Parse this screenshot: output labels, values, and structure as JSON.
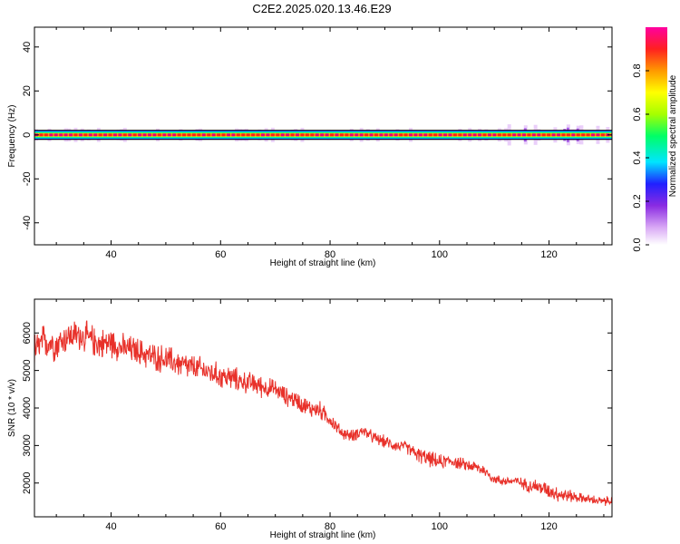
{
  "title": "C2E2.2025.020.13.46.E29",
  "chart_data": [
    {
      "type": "heatmap",
      "xlabel": "Height of straight line (km)",
      "ylabel": "Frequency (Hz)",
      "xlim": [
        26,
        131.5
      ],
      "ylim": [
        -50,
        49
      ],
      "x_ticks": [
        40,
        60,
        80,
        100,
        120
      ],
      "y_ticks": [
        -40,
        -20,
        0,
        20,
        40
      ],
      "x_tick_labels": [
        "40",
        "60",
        "80",
        "100",
        "120"
      ],
      "y_tick_labels": [
        "-40",
        "-20",
        "0",
        "20",
        "40"
      ],
      "signal_frequency": 0,
      "colorbar": {
        "label": "Normalized spectral amplitude",
        "range": [
          0,
          1
        ],
        "ticks": [
          0.0,
          0.2,
          0.4,
          0.6,
          0.8
        ],
        "tick_labels": [
          "0.0",
          "0.2",
          "0.4",
          "0.6",
          "0.8"
        ],
        "colormap": [
          "#ffffff",
          "#d9a8f5",
          "#8a2be2",
          "#2020ff",
          "#00e5ff",
          "#00ff66",
          "#a6ff00",
          "#ffff00",
          "#ff9900",
          "#ff2020",
          "#ff00a0"
        ]
      },
      "grid": false
    },
    {
      "type": "line",
      "xlabel": "Height of straight line (km)",
      "ylabel": "SNR (10 * v/v)",
      "xlim": [
        26,
        131.5
      ],
      "ylim": [
        1100,
        6900
      ],
      "x_ticks": [
        40,
        60,
        80,
        100,
        120
      ],
      "y_ticks": [
        2000,
        3000,
        4000,
        5000,
        6000
      ],
      "x_tick_labels": [
        "40",
        "60",
        "80",
        "100",
        "120"
      ],
      "y_tick_labels": [
        "2000",
        "3000",
        "4000",
        "5000",
        "6000"
      ],
      "line_color": "#e8312a",
      "grid": false,
      "series": [
        {
          "x": [
            26,
            28,
            30,
            32,
            34,
            36,
            38,
            40,
            42,
            44,
            46,
            48,
            50,
            52,
            54,
            56,
            58,
            60,
            62,
            64,
            66,
            68,
            70,
            72,
            74,
            76,
            78,
            80,
            82,
            84,
            86,
            88,
            90,
            92,
            94,
            96,
            98,
            100,
            102,
            104,
            106,
            108,
            110,
            112,
            114,
            116,
            118,
            120,
            122,
            124,
            126,
            128,
            130,
            131.5
          ],
          "values": [
            5500,
            5800,
            5700,
            5900,
            5950,
            5850,
            5700,
            5750,
            5600,
            5550,
            5450,
            5350,
            5300,
            5200,
            5100,
            5050,
            4950,
            4850,
            4800,
            4700,
            4650,
            4550,
            4500,
            4300,
            4200,
            4000,
            3950,
            3700,
            3350,
            3250,
            3400,
            3200,
            3100,
            3000,
            2950,
            2750,
            2650,
            2550,
            2600,
            2500,
            2450,
            2350,
            2100,
            2050,
            2050,
            1950,
            1900,
            1800,
            1700,
            1650,
            1600,
            1550,
            1500,
            1550
          ],
          "noise_amplitude": [
            600,
            600,
            550,
            500,
            500,
            500,
            500,
            500,
            450,
            450,
            450,
            450,
            450,
            450,
            450,
            400,
            400,
            400,
            400,
            350,
            350,
            350,
            300,
            300,
            300,
            300,
            300,
            250,
            200,
            200,
            200,
            200,
            200,
            200,
            200,
            250,
            250,
            250,
            200,
            200,
            200,
            200,
            150,
            150,
            150,
            200,
            250,
            250,
            250,
            200,
            150,
            150,
            150,
            150
          ]
        }
      ]
    }
  ]
}
